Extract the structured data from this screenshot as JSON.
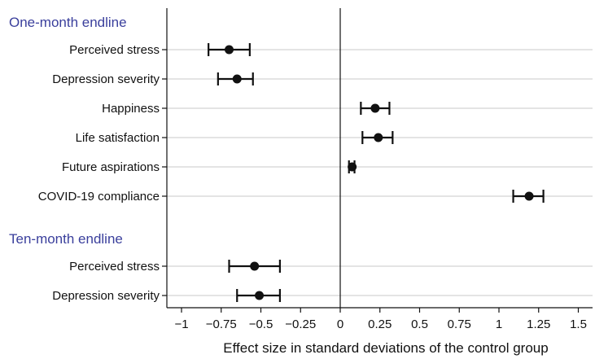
{
  "chart_data": {
    "type": "forest",
    "xlabel": "Effect size in standard deviations of the control group",
    "xlim": [
      -1.1,
      1.5
    ],
    "xticks": [
      -1,
      -0.75,
      -0.5,
      -0.25,
      0,
      0.25,
      0.5,
      0.75,
      1,
      1.25,
      1.5
    ],
    "xtick_labels": [
      "−1",
      "−0.75",
      "−0.5",
      "−0.25",
      "0",
      "0.25",
      "0.5",
      "0.75",
      "1",
      "1.25",
      "1.5"
    ],
    "reference_line": 0,
    "grid": "horizontal",
    "colors": {
      "group_label": "#3a3f9c",
      "marker": "#111111",
      "grid": "#c8c8c8"
    },
    "groups": [
      {
        "label": "One-month endline",
        "rows": [
          {
            "label": "Perceived stress",
            "estimate": -0.7,
            "ci_low": -0.83,
            "ci_high": -0.57
          },
          {
            "label": "Depression severity",
            "estimate": -0.65,
            "ci_low": -0.77,
            "ci_high": -0.55
          },
          {
            "label": "Happiness",
            "estimate": 0.22,
            "ci_low": 0.13,
            "ci_high": 0.31
          },
          {
            "label": "Life satisfaction",
            "estimate": 0.24,
            "ci_low": 0.14,
            "ci_high": 0.33
          },
          {
            "label": "Future aspirations",
            "estimate": 0.075,
            "ci_low": 0.055,
            "ci_high": 0.09
          },
          {
            "label": "COVID-19 compliance",
            "estimate": 1.19,
            "ci_low": 1.09,
            "ci_high": 1.28
          }
        ]
      },
      {
        "label": "Ten-month endline",
        "rows": [
          {
            "label": "Perceived stress",
            "estimate": -0.54,
            "ci_low": -0.7,
            "ci_high": -0.38
          },
          {
            "label": "Depression severity",
            "estimate": -0.51,
            "ci_low": -0.65,
            "ci_high": -0.38
          }
        ]
      }
    ]
  }
}
